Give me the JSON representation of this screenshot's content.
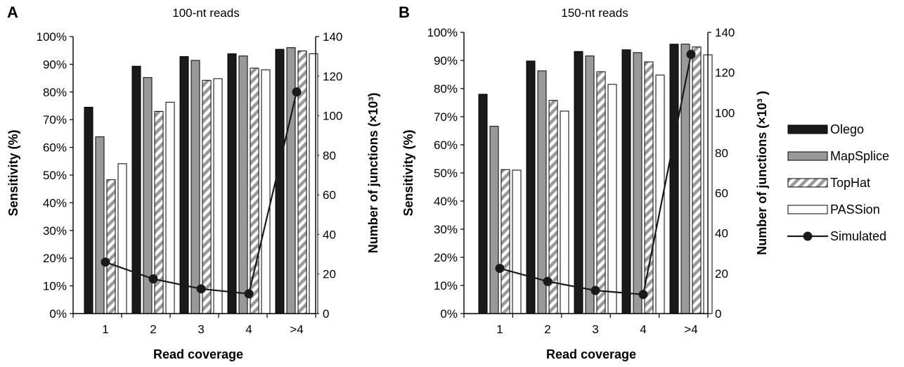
{
  "legend": [
    {
      "name": "Olego",
      "style": "solid",
      "color": "#1a1a1a"
    },
    {
      "name": "MapSplice",
      "style": "solid",
      "color": "#999999"
    },
    {
      "name": "TopHat",
      "style": "hatch",
      "color": "#9a9a9a"
    },
    {
      "name": "PASSion",
      "style": "open",
      "color": "#ffffff"
    },
    {
      "name": "Simulated",
      "style": "line-marker",
      "color": "#1a1a1a"
    }
  ],
  "chart_data": [
    {
      "type": "bar",
      "panel_label": "A",
      "title": "100-nt reads",
      "xlabel": "Read coverage",
      "ylabel": "Sensitivity (%)",
      "y2label": "Number of junctions (×10³)",
      "categories": [
        "1",
        "2",
        "3",
        "4",
        ">4"
      ],
      "ylim": [
        0,
        100
      ],
      "y_ticks": [
        "0%",
        "10%",
        "20%",
        "30%",
        "40%",
        "50%",
        "60%",
        "70%",
        "80%",
        "90%",
        "100%"
      ],
      "y2lim": [
        0,
        140
      ],
      "y2_ticks": [
        "0",
        "20",
        "40",
        "60",
        "80",
        "100",
        "120",
        "140"
      ],
      "series": [
        {
          "name": "Olego",
          "values": [
            74.5,
            89.3,
            92.8,
            93.8,
            95.4
          ]
        },
        {
          "name": "MapSplice",
          "values": [
            63.8,
            85.2,
            91.4,
            93.0,
            96.0
          ]
        },
        {
          "name": "TopHat",
          "values": [
            48.3,
            73.0,
            84.2,
            88.6,
            94.8
          ]
        },
        {
          "name": "PASSion",
          "values": [
            54.1,
            76.3,
            84.8,
            88.0,
            93.8
          ]
        }
      ],
      "line_series": {
        "name": "Simulated",
        "values": [
          26,
          17.5,
          12.5,
          10,
          112
        ]
      }
    },
    {
      "type": "bar",
      "panel_label": "B",
      "title": "150-nt reads",
      "xlabel": "Read coverage",
      "ylabel": "Sensitivity (%)",
      "y2label": "Number of junctions (×10³ )",
      "categories": [
        "1",
        "2",
        "3",
        "4",
        ">4"
      ],
      "ylim": [
        0,
        100
      ],
      "y_ticks": [
        "0%",
        "10%",
        "20%",
        "30%",
        "40%",
        "50%",
        "60%",
        "70%",
        "80%",
        "90%",
        "100%"
      ],
      "y2lim": [
        0,
        140
      ],
      "y2_ticks": [
        "0",
        "20",
        "40",
        "60",
        "80",
        "100",
        "120",
        "140"
      ],
      "series": [
        {
          "name": "Olego",
          "values": [
            78.0,
            89.8,
            93.2,
            93.8,
            95.8
          ]
        },
        {
          "name": "MapSplice",
          "values": [
            66.6,
            86.3,
            91.6,
            92.8,
            95.8
          ]
        },
        {
          "name": "TopHat",
          "values": [
            51.2,
            75.8,
            86.0,
            89.5,
            94.8
          ]
        },
        {
          "name": "PASSion",
          "values": [
            51.0,
            72.0,
            81.5,
            84.8,
            92.0
          ]
        }
      ],
      "line_series": {
        "name": "Simulated",
        "values": [
          22.5,
          16,
          11.5,
          9.5,
          129
        ]
      }
    }
  ]
}
